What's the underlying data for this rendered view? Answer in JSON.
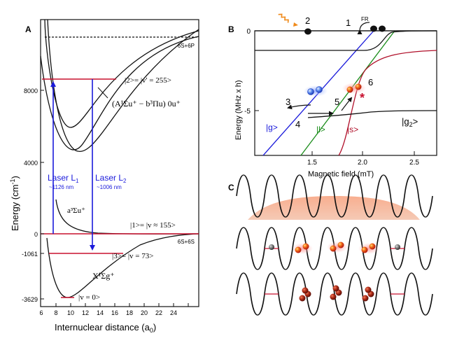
{
  "panels": {
    "a": {
      "letter": "A",
      "ylabel": "Energy (cm",
      "ylabel_sup": "-1",
      "ylabel_end": ")",
      "xlabel": "Internuclear distance (a",
      "xlabel_sub": "0",
      "xlabel_end": ")",
      "yticks": [
        {
          "value": 8000,
          "label": "8000"
        },
        {
          "value": 4000,
          "label": "4000"
        },
        {
          "value": 0,
          "label": "0"
        },
        {
          "value": -1061,
          "label": "-1061"
        },
        {
          "value": -3629,
          "label": "-3629"
        }
      ],
      "xticks": [
        "6",
        "8",
        "10",
        "12",
        "14",
        "16",
        "18",
        "20",
        "22",
        "24"
      ],
      "asymptote_upper": "6S+6P",
      "asymptote_lower": "6S+6S",
      "state_excited": "|2>= |v' = 255>",
      "state_excited_curve": "(A¹Σu⁺ − b³Πu) 0u⁺",
      "state_1": "|1>= |v ≈ 155>",
      "state_3": "|3>= |v = 73>",
      "state_0": "|v = 0>",
      "triplet_label": "a³Σu⁺",
      "singlet_label": "X¹Σg⁺",
      "laser1_name": "Laser L",
      "laser1_sub": "1",
      "laser1_wavelength": "~1126 nm",
      "laser2_name": "Laser L",
      "laser2_sub": "2",
      "laser2_wavelength": "~1006 nm",
      "laser_color": "#1a1adb",
      "level_color": "#c8102e"
    },
    "b": {
      "letter": "B",
      "ylabel": "Energy (MHz x h)",
      "xlabel": "Magnetic field (mT)",
      "yticks": [
        "0",
        "-5"
      ],
      "xticks": [
        "1.5",
        "2.0",
        "2.5"
      ],
      "fr_label": "FR",
      "steps": [
        "1",
        "2",
        "3",
        "4",
        "5",
        "6"
      ],
      "star": "*",
      "state_g": "|g>",
      "state_l": "|l>",
      "state_s": "|s>",
      "state_g2": "|g",
      "state_g2_sub": "2",
      "state_g2_end": ">",
      "color_g": "#1a1adb",
      "color_l": "#1a8c1a",
      "color_s": "#b0102a"
    },
    "c": {
      "letter": "C"
    }
  }
}
